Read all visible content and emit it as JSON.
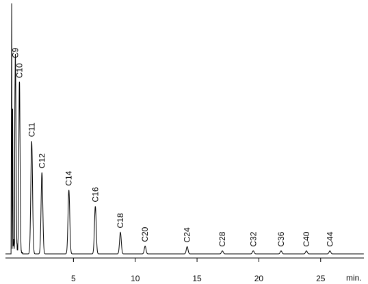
{
  "chart_data": {
    "type": "line",
    "title": "",
    "xlabel": "min.",
    "ylabel": "",
    "xlim": [
      -0.5,
      28.5
    ],
    "ylim": [
      0,
      100
    ],
    "x_ticks": [
      {
        "value": 5,
        "label": "5"
      },
      {
        "value": 10,
        "label": "10"
      },
      {
        "value": 15,
        "label": "15"
      },
      {
        "value": 20,
        "label": "20"
      },
      {
        "value": 25,
        "label": "25"
      }
    ],
    "grid": false,
    "series": [
      {
        "peaks": [
          {
            "label": "C9",
            "x": 0.3,
            "height": 76.5
          },
          {
            "label": "C10",
            "x": 0.63,
            "height": 68.5
          },
          {
            "label": "C11",
            "x": 1.62,
            "height": 45.0
          },
          {
            "label": "C12",
            "x": 2.45,
            "height": 32.5
          },
          {
            "label": "C14",
            "x": 4.63,
            "height": 25.5
          },
          {
            "label": "C16",
            "x": 6.77,
            "height": 19.0
          },
          {
            "label": "C18",
            "x": 8.8,
            "height": 8.6
          },
          {
            "label": "C20",
            "x": 10.8,
            "height": 3.1
          },
          {
            "label": "C24",
            "x": 14.2,
            "height": 2.9
          },
          {
            "label": "C28",
            "x": 17.05,
            "height": 1.2
          },
          {
            "label": "C32",
            "x": 19.55,
            "height": 1.2
          },
          {
            "label": "C36",
            "x": 21.8,
            "height": 1.2
          },
          {
            "label": "C40",
            "x": 23.85,
            "height": 1.2
          },
          {
            "label": "C44",
            "x": 25.75,
            "height": 1.2
          }
        ]
      }
    ]
  }
}
